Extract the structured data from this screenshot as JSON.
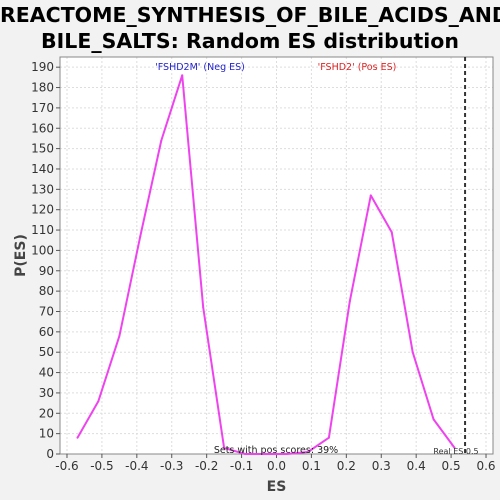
{
  "chart_data": {
    "type": "line",
    "title_lines": [
      "REACTOME_SYNTHESIS_OF_BILE_ACIDS_AND_",
      "BILE_SALTS: Random ES distribution"
    ],
    "xlabel": "ES",
    "ylabel": "P(ES)",
    "xlim": [
      -0.62,
      0.62
    ],
    "ylim": [
      0,
      195
    ],
    "x_ticks": [
      -0.6,
      -0.5,
      -0.4,
      -0.3,
      -0.2,
      -0.1,
      0.0,
      0.1,
      0.2,
      0.3,
      0.4,
      0.5,
      0.6
    ],
    "y_ticks": [
      0,
      10,
      20,
      30,
      40,
      50,
      60,
      70,
      80,
      90,
      100,
      110,
      120,
      130,
      140,
      150,
      160,
      170,
      180,
      190
    ],
    "grid": true,
    "series": [
      {
        "color": "#ee44ee",
        "x": [
          -0.57,
          -0.51,
          -0.45,
          -0.39,
          -0.33,
          -0.27,
          -0.21,
          -0.15,
          -0.09,
          -0.03,
          0.03,
          0.09,
          0.15,
          0.21,
          0.27,
          0.33,
          0.39,
          0.45,
          0.51
        ],
        "y": [
          8,
          26,
          58,
          107,
          154,
          186,
          72,
          3,
          0,
          0,
          0,
          1,
          8,
          75,
          127,
          109,
          50,
          17,
          3
        ]
      }
    ],
    "real_es": 0.54,
    "annotations": {
      "neg_label": "'FSHD2M' (Neg ES)",
      "pos_label": "'FSHD2' (Pos ES)",
      "pos_scores": "Sets with pos scores: 39%",
      "real_es_label": "Real ES 0.5"
    },
    "colors": {
      "neg": "#2222cc",
      "pos": "#dd2222",
      "line": "#ee44ee",
      "grid": "#dddddd",
      "plot_bg": "#ffffff",
      "real_es": "#333333"
    }
  }
}
